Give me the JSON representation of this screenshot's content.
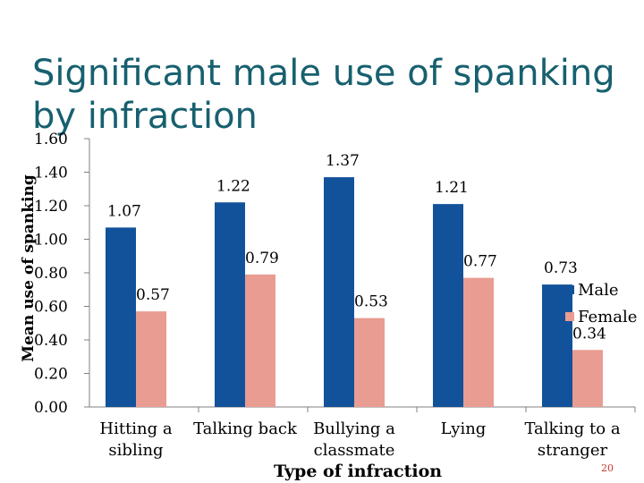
{
  "slide": {
    "title": "Significant male use of spanking by infraction",
    "page_number": "20"
  },
  "colors": {
    "male": "#12529a",
    "female": "#e89c92",
    "axis": "#808080",
    "title": "#17606f",
    "text": "#000000"
  },
  "chart_data": {
    "type": "bar",
    "title": "Significant male use of spanking by infraction",
    "xlabel": "Type of infraction",
    "ylabel": "Mean use of spanking",
    "ylim": [
      0,
      1.6
    ],
    "yticks": [
      "0.00",
      "0.20",
      "0.40",
      "0.60",
      "0.80",
      "1.00",
      "1.20",
      "1.40",
      "1.60"
    ],
    "categories": [
      "Hitting a sibling",
      "Talking back",
      "Bullying a classmate",
      "Lying",
      "Talking to a stranger"
    ],
    "series": [
      {
        "name": "Male",
        "values": [
          1.07,
          1.22,
          1.37,
          1.21,
          0.73
        ],
        "labels": [
          "1.07",
          "1.22",
          "1.37",
          "1.21",
          "0.73"
        ]
      },
      {
        "name": "Female",
        "values": [
          0.57,
          0.79,
          0.53,
          0.77,
          0.34
        ],
        "labels": [
          "0.57",
          "0.79",
          "0.53",
          "0.77",
          "0.34"
        ]
      }
    ],
    "legend": [
      "Male",
      "Female"
    ],
    "legend_position": "right"
  }
}
